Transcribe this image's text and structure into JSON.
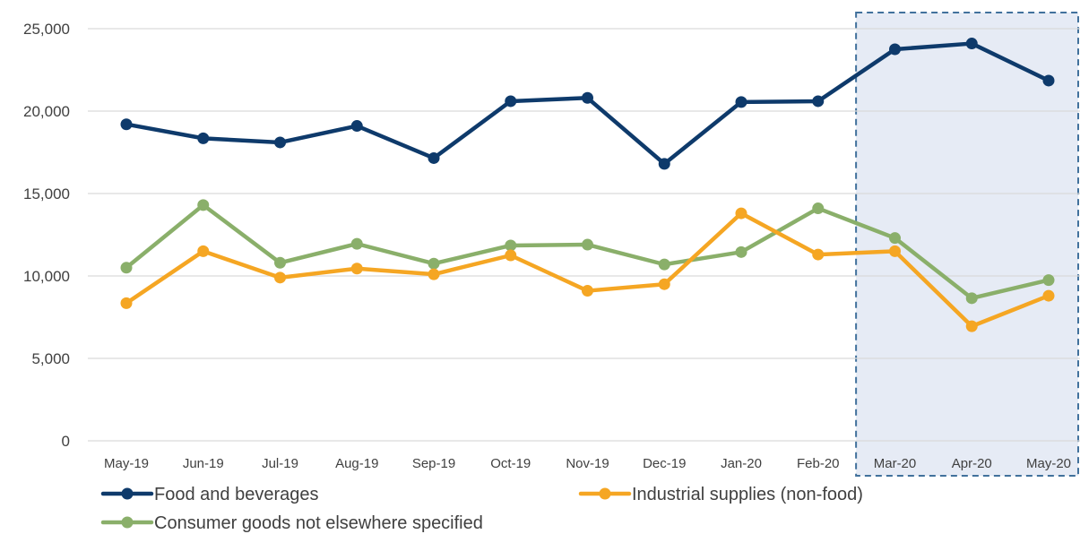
{
  "chart_data": {
    "type": "line",
    "categories": [
      "May-19",
      "Jun-19",
      "Jul-19",
      "Aug-19",
      "Sep-19",
      "Oct-19",
      "Nov-19",
      "Dec-19",
      "Jan-20",
      "Feb-20",
      "Mar-20",
      "Apr-20",
      "May-20"
    ],
    "ylim": [
      0,
      25000
    ],
    "yticks": [
      "0",
      "5,000",
      "10,000",
      "15,000",
      "20,000",
      "25,000"
    ],
    "ytick_values": [
      0,
      5000,
      10000,
      15000,
      20000,
      25000
    ],
    "grid": true,
    "legend_position": "bottom",
    "highlight_range": {
      "start": "Mar-20",
      "end": "May-20",
      "fill": "#e6ebf5",
      "border": "#41719c"
    },
    "series": [
      {
        "name": "Food and beverages",
        "color": "#0e3a6b",
        "values": [
          19200,
          18350,
          18100,
          19100,
          17150,
          20600,
          20800,
          16800,
          20550,
          20600,
          23750,
          24100,
          21850
        ]
      },
      {
        "name": "Industrial supplies (non-food)",
        "color": "#f5a623",
        "values": [
          8350,
          11500,
          9900,
          10450,
          10100,
          11250,
          9100,
          9500,
          13800,
          11300,
          11500,
          6950,
          8800
        ]
      },
      {
        "name": "Consumer goods not elsewhere specified",
        "color": "#8aaf6a",
        "values": [
          10500,
          14300,
          10800,
          11950,
          10750,
          11850,
          11900,
          10700,
          11450,
          14100,
          12300,
          8650,
          9750
        ]
      }
    ]
  }
}
